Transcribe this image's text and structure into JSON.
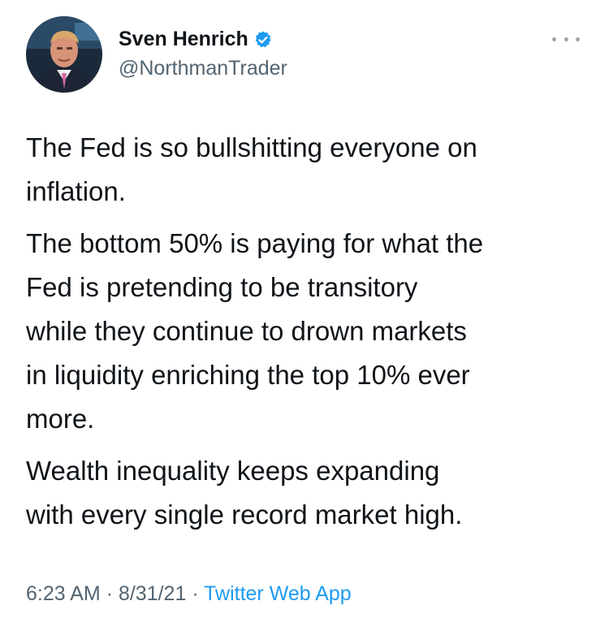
{
  "author": {
    "display_name": "Sven Henrich",
    "handle": "@NorthmanTrader",
    "verified": true
  },
  "tweet": {
    "paragraphs": [
      "The Fed is so bullshitting everyone on\ninflation.",
      "The bottom 50% is paying for what the\nFed is pretending to be transitory\nwhile they continue to drown markets\nin liquidity enriching the top 10% ever\nmore.",
      "Wealth inequality keeps expanding\nwith every single record market high."
    ]
  },
  "meta": {
    "time": "6:23 AM",
    "sep1": " · ",
    "date": "8/31/21",
    "sep2": " · ",
    "source": "Twitter Web App"
  },
  "colors": {
    "accent": "#1d9bf0",
    "secondary_text": "#536471",
    "primary_text": "#0f1419"
  },
  "icons": {
    "verified": "verified-badge-icon",
    "more": "more-options-icon"
  }
}
